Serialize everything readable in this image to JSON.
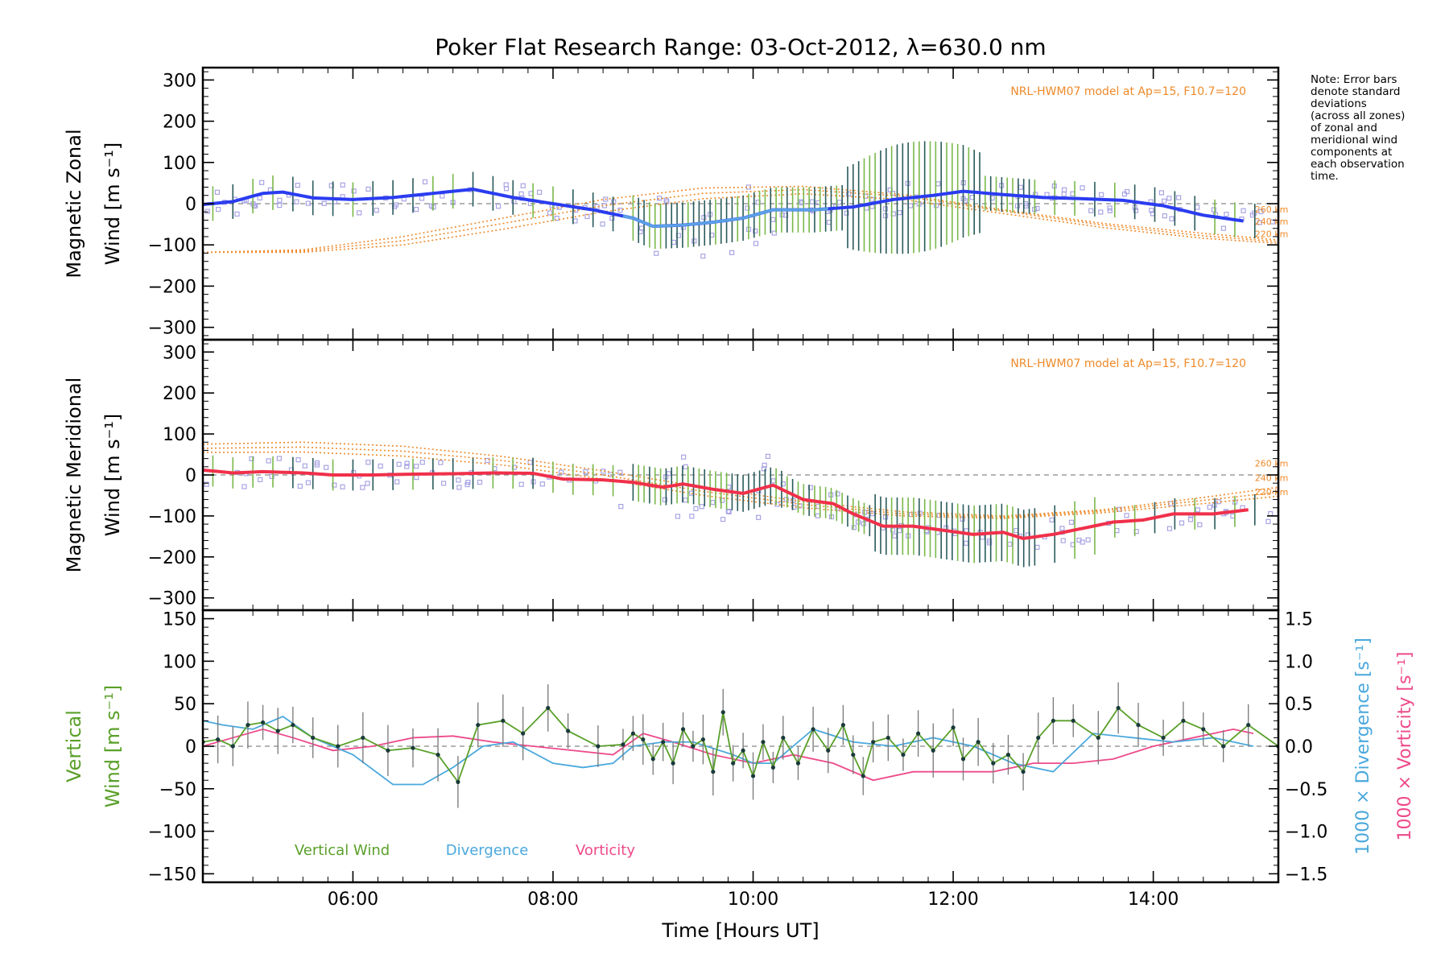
{
  "figure": {
    "title": "Poker Flat Research Range: 03-Oct-2012, λ=630.0 nm",
    "xlabel": "Time [Hours UT]",
    "x_ticks": [
      "06:00",
      "08:00",
      "10:00",
      "12:00",
      "14:00"
    ],
    "note_lines": [
      "Note: Error bars",
      "denote standard",
      "deviations",
      "(across all zones)",
      "of zonal and",
      "meridional wind",
      "components at",
      "each observation",
      "time."
    ]
  },
  "colors": {
    "zonal": "#2a3cf0",
    "zonal_light": "#5aa0e6",
    "meridional": "#f0304a",
    "model": "#ee8a2a",
    "vertical": "#5aa02a",
    "divergence": "#4aa8dc",
    "vorticity": "#ee4a8a",
    "samples": "#a8a4e4",
    "errorbar_a": "#2a5a5a",
    "errorbar_b": "#7ab84a"
  },
  "chart_data": [
    {
      "type": "line",
      "panel": "zonal",
      "ylabel_lines": [
        "Magnetic Zonal",
        "Wind [m s⁻¹]"
      ],
      "ylim": [
        -330,
        330
      ],
      "yticks": [
        -300,
        -200,
        -100,
        0,
        100,
        200,
        300
      ],
      "ytick_labels": [
        "−300",
        "−200",
        "−100",
        "0",
        "100",
        "200",
        "300"
      ],
      "xlim": [
        4.5,
        15.25
      ],
      "model_label": "NRL-HWM07 model at Ap=15, F10.7=120",
      "model_curve_labels": [
        "260 km",
        "240 km",
        "220 km"
      ],
      "series": [
        {
          "name": "Magnetic Zonal Wind",
          "x": [
            4.5,
            4.8,
            5.1,
            5.3,
            5.6,
            6.0,
            6.4,
            6.8,
            7.2,
            7.6,
            8.0,
            8.4,
            8.8,
            9.0,
            9.3,
            9.6,
            9.9,
            10.2,
            10.6,
            11.0,
            11.4,
            11.8,
            12.1,
            12.5,
            12.9,
            13.3,
            13.7,
            14.1,
            14.5,
            14.9
          ],
          "y": [
            -2,
            5,
            25,
            28,
            14,
            10,
            15,
            25,
            35,
            15,
            0,
            -15,
            -35,
            -55,
            -52,
            -45,
            -35,
            -15,
            -15,
            -8,
            10,
            20,
            30,
            22,
            15,
            12,
            8,
            -5,
            -28,
            -42
          ]
        },
        {
          "name": "NRL-HWM07 260 km",
          "x": [
            4.5,
            5.5,
            6.5,
            7.5,
            8.5,
            9.5,
            10.5,
            11.5,
            12.5,
            13.5,
            14.5,
            15.25
          ],
          "y": [
            -118,
            -112,
            -80,
            -35,
            10,
            38,
            42,
            22,
            -15,
            -48,
            -72,
            -88
          ]
        },
        {
          "name": "NRL-HWM07 240 km",
          "x": [
            4.5,
            5.5,
            6.5,
            7.5,
            8.5,
            9.5,
            10.5,
            11.5,
            12.5,
            13.5,
            14.5,
            15.25
          ],
          "y": [
            -118,
            -115,
            -90,
            -48,
            -5,
            25,
            34,
            18,
            -18,
            -52,
            -78,
            -92
          ]
        },
        {
          "name": "NRL-HWM07 220 km",
          "x": [
            4.5,
            5.5,
            6.5,
            7.5,
            8.5,
            9.5,
            10.5,
            11.5,
            12.5,
            13.5,
            14.5,
            15.25
          ],
          "y": [
            -118,
            -118,
            -100,
            -62,
            -20,
            12,
            24,
            10,
            -24,
            -58,
            -84,
            -96
          ]
        }
      ]
    },
    {
      "type": "line",
      "panel": "meridional",
      "ylabel_lines": [
        "Magnetic Meridional",
        "Wind [m s⁻¹]"
      ],
      "ylim": [
        -330,
        330
      ],
      "yticks": [
        -300,
        -200,
        -100,
        0,
        100,
        200,
        300
      ],
      "ytick_labels": [
        "−300",
        "−200",
        "−100",
        "0",
        "100",
        "200",
        "300"
      ],
      "xlim": [
        4.5,
        15.25
      ],
      "model_label": "NRL-HWM07 model at Ap=15, F10.7=120",
      "model_curve_labels": [
        "260 km",
        "240 km",
        "220 km"
      ],
      "series": [
        {
          "name": "Magnetic Meridional Wind",
          "x": [
            4.5,
            4.8,
            5.1,
            5.5,
            5.8,
            6.2,
            6.6,
            7.0,
            7.4,
            7.8,
            8.1,
            8.5,
            8.8,
            9.1,
            9.3,
            9.6,
            9.9,
            10.2,
            10.5,
            10.8,
            11.0,
            11.3,
            11.6,
            11.9,
            12.2,
            12.5,
            12.7,
            13.0,
            13.3,
            13.6,
            13.9,
            14.2,
            14.6,
            14.95
          ],
          "y": [
            12,
            5,
            8,
            5,
            0,
            0,
            2,
            3,
            5,
            4,
            -10,
            -12,
            -18,
            -30,
            -22,
            -35,
            -45,
            -25,
            -60,
            -70,
            -95,
            -125,
            -125,
            -135,
            -145,
            -140,
            -155,
            -145,
            -130,
            -115,
            -110,
            -95,
            -95,
            -85
          ]
        },
        {
          "name": "NRL-HWM07 260 km",
          "x": [
            4.5,
            5.5,
            6.5,
            7.5,
            8.5,
            9.5,
            10.5,
            11.5,
            12.5,
            13.5,
            14.5,
            15.25
          ],
          "y": [
            75,
            80,
            70,
            45,
            10,
            -30,
            -65,
            -90,
            -100,
            -85,
            -55,
            -30
          ]
        },
        {
          "name": "NRL-HWM07 240 km",
          "x": [
            4.5,
            5.5,
            6.5,
            7.5,
            8.5,
            9.5,
            10.5,
            11.5,
            12.5,
            13.5,
            14.5,
            15.25
          ],
          "y": [
            65,
            68,
            58,
            35,
            0,
            -40,
            -72,
            -95,
            -103,
            -88,
            -62,
            -42
          ]
        },
        {
          "name": "NRL-HWM07 220 km",
          "x": [
            4.5,
            5.5,
            6.5,
            7.5,
            8.5,
            9.5,
            10.5,
            11.5,
            12.5,
            13.5,
            14.5,
            15.25
          ],
          "y": [
            55,
            56,
            46,
            24,
            -10,
            -50,
            -80,
            -100,
            -106,
            -92,
            -70,
            -52
          ]
        }
      ]
    },
    {
      "type": "line",
      "panel": "vertical",
      "ylabel_lines": [
        "Vertical",
        "Wind [m s⁻¹]"
      ],
      "ylim": [
        -160,
        160
      ],
      "yticks": [
        -150,
        -100,
        -50,
        0,
        50,
        100,
        150
      ],
      "ytick_labels": [
        "−150",
        "−100",
        "−50",
        "0",
        "50",
        "100",
        "150"
      ],
      "right_axis": {
        "ylim": [
          -1.6,
          1.6
        ],
        "yticks": [
          -1.5,
          -1.0,
          -0.5,
          0.0,
          0.5,
          1.0,
          1.5
        ],
        "ytick_labels": [
          "−1.5",
          "−1.0",
          "−0.5",
          "0.0",
          "0.5",
          "1.0",
          "1.5"
        ],
        "label_divergence": "1000 × Divergence [s⁻¹]",
        "label_vorticity": "1000 × Vorticity [s⁻¹]"
      },
      "xlim": [
        4.5,
        15.25
      ],
      "legend": [
        "Vertical Wind",
        "Divergence",
        "Vorticity"
      ],
      "series": [
        {
          "name": "Vertical Wind",
          "x": [
            4.5,
            4.65,
            4.8,
            4.95,
            5.1,
            5.25,
            5.4,
            5.6,
            5.85,
            6.1,
            6.35,
            6.6,
            6.85,
            7.05,
            7.25,
            7.5,
            7.7,
            7.95,
            8.15,
            8.45,
            8.7,
            8.8,
            8.9,
            9.0,
            9.1,
            9.2,
            9.3,
            9.4,
            9.5,
            9.6,
            9.7,
            9.8,
            9.9,
            10.0,
            10.1,
            10.2,
            10.3,
            10.45,
            10.6,
            10.75,
            10.9,
            11.0,
            11.1,
            11.2,
            11.35,
            11.5,
            11.65,
            11.8,
            12.0,
            12.1,
            12.25,
            12.4,
            12.55,
            12.7,
            12.85,
            13.0,
            13.2,
            13.45,
            13.65,
            13.85,
            14.1,
            14.3,
            14.5,
            14.7,
            14.95,
            15.25
          ],
          "y": [
            5,
            8,
            0,
            25,
            28,
            18,
            25,
            10,
            0,
            10,
            -5,
            -2,
            -10,
            -42,
            25,
            30,
            15,
            45,
            18,
            0,
            2,
            15,
            8,
            -15,
            5,
            -20,
            20,
            0,
            8,
            -30,
            40,
            -20,
            -5,
            -35,
            5,
            -25,
            10,
            -20,
            20,
            -5,
            25,
            -10,
            -35,
            5,
            10,
            -10,
            15,
            -5,
            22,
            -15,
            5,
            -20,
            -10,
            -30,
            10,
            30,
            30,
            10,
            45,
            25,
            10,
            30,
            20,
            0,
            25,
            0
          ]
        },
        {
          "name": "Divergence",
          "x": [
            4.5,
            4.7,
            5.0,
            5.3,
            5.6,
            6.0,
            6.4,
            6.7,
            7.0,
            7.3,
            7.6,
            8.0,
            8.3,
            8.6,
            8.8,
            9.1,
            9.4,
            9.8,
            10.0,
            10.2,
            10.6,
            11.0,
            11.4,
            11.8,
            12.2,
            12.6,
            13.0,
            13.4,
            13.8,
            14.2,
            14.6,
            15.0
          ],
          "y": [
            0.3,
            0.25,
            0.2,
            0.35,
            0.1,
            -0.1,
            -0.45,
            -0.45,
            -0.25,
            0.0,
            0.05,
            -0.2,
            -0.25,
            -0.2,
            0.0,
            0.05,
            0.05,
            -0.1,
            -0.2,
            -0.2,
            0.2,
            0.05,
            0.0,
            0.1,
            0.0,
            -0.2,
            -0.3,
            0.15,
            0.1,
            0.05,
            0.1,
            0.0
          ]
        },
        {
          "name": "Vorticity",
          "x": [
            4.5,
            4.8,
            5.1,
            5.4,
            5.8,
            6.2,
            6.6,
            7.0,
            7.4,
            7.8,
            8.2,
            8.6,
            8.9,
            9.2,
            9.6,
            10.0,
            10.4,
            10.8,
            11.2,
            11.6,
            12.0,
            12.4,
            12.8,
            13.2,
            13.6,
            14.0,
            14.4,
            14.8,
            15.0
          ],
          "y": [
            0.0,
            0.1,
            0.2,
            0.1,
            -0.05,
            0.0,
            0.1,
            0.12,
            0.05,
            0.0,
            -0.05,
            -0.1,
            0.15,
            0.05,
            -0.1,
            -0.2,
            -0.1,
            -0.2,
            -0.4,
            -0.3,
            -0.3,
            -0.3,
            -0.2,
            -0.2,
            -0.15,
            0.0,
            0.1,
            0.2,
            0.15
          ]
        }
      ]
    }
  ]
}
